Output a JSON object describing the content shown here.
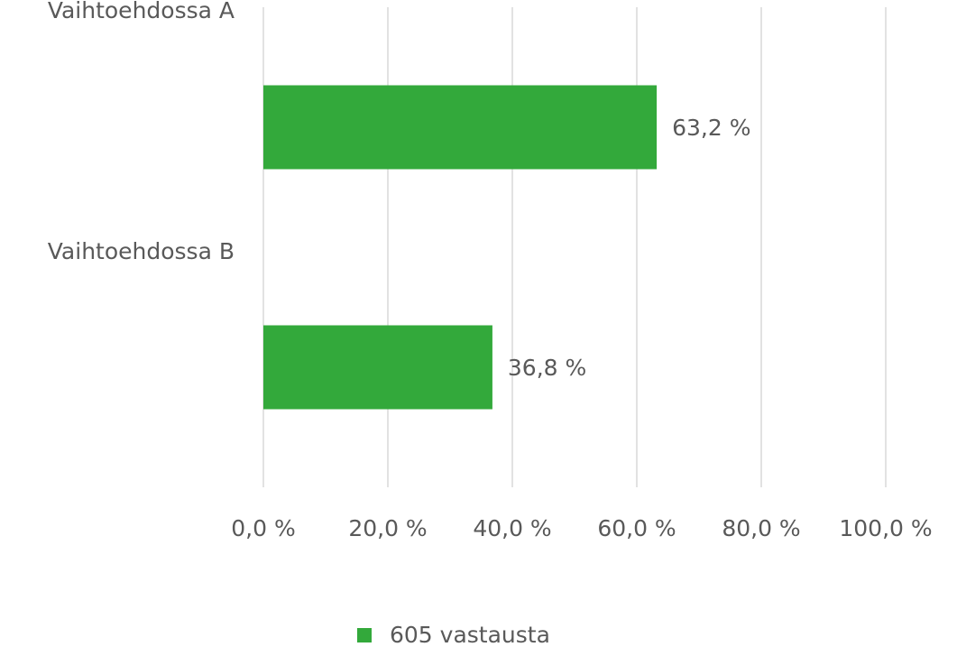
{
  "chart_data": {
    "type": "bar",
    "orientation": "horizontal",
    "categories": [
      "Vaihtoehdossa A",
      "Vaihtoehdossa B"
    ],
    "series": [
      {
        "name": "605 vastausta",
        "color": "#33a93b",
        "values": [
          63.2,
          36.8
        ],
        "value_labels": [
          "63,2 %",
          "36,8 %"
        ]
      }
    ],
    "xlim": [
      0,
      100
    ],
    "xticks": [
      {
        "value": 0,
        "label": "0,0 %"
      },
      {
        "value": 20,
        "label": "20,0 %"
      },
      {
        "value": 40,
        "label": "40,0 %"
      },
      {
        "value": 60,
        "label": "60,0 %"
      },
      {
        "value": 80,
        "label": "80,0 %"
      },
      {
        "value": 100,
        "label": "100,0 %"
      }
    ],
    "grid": true,
    "legend": "bottom"
  }
}
